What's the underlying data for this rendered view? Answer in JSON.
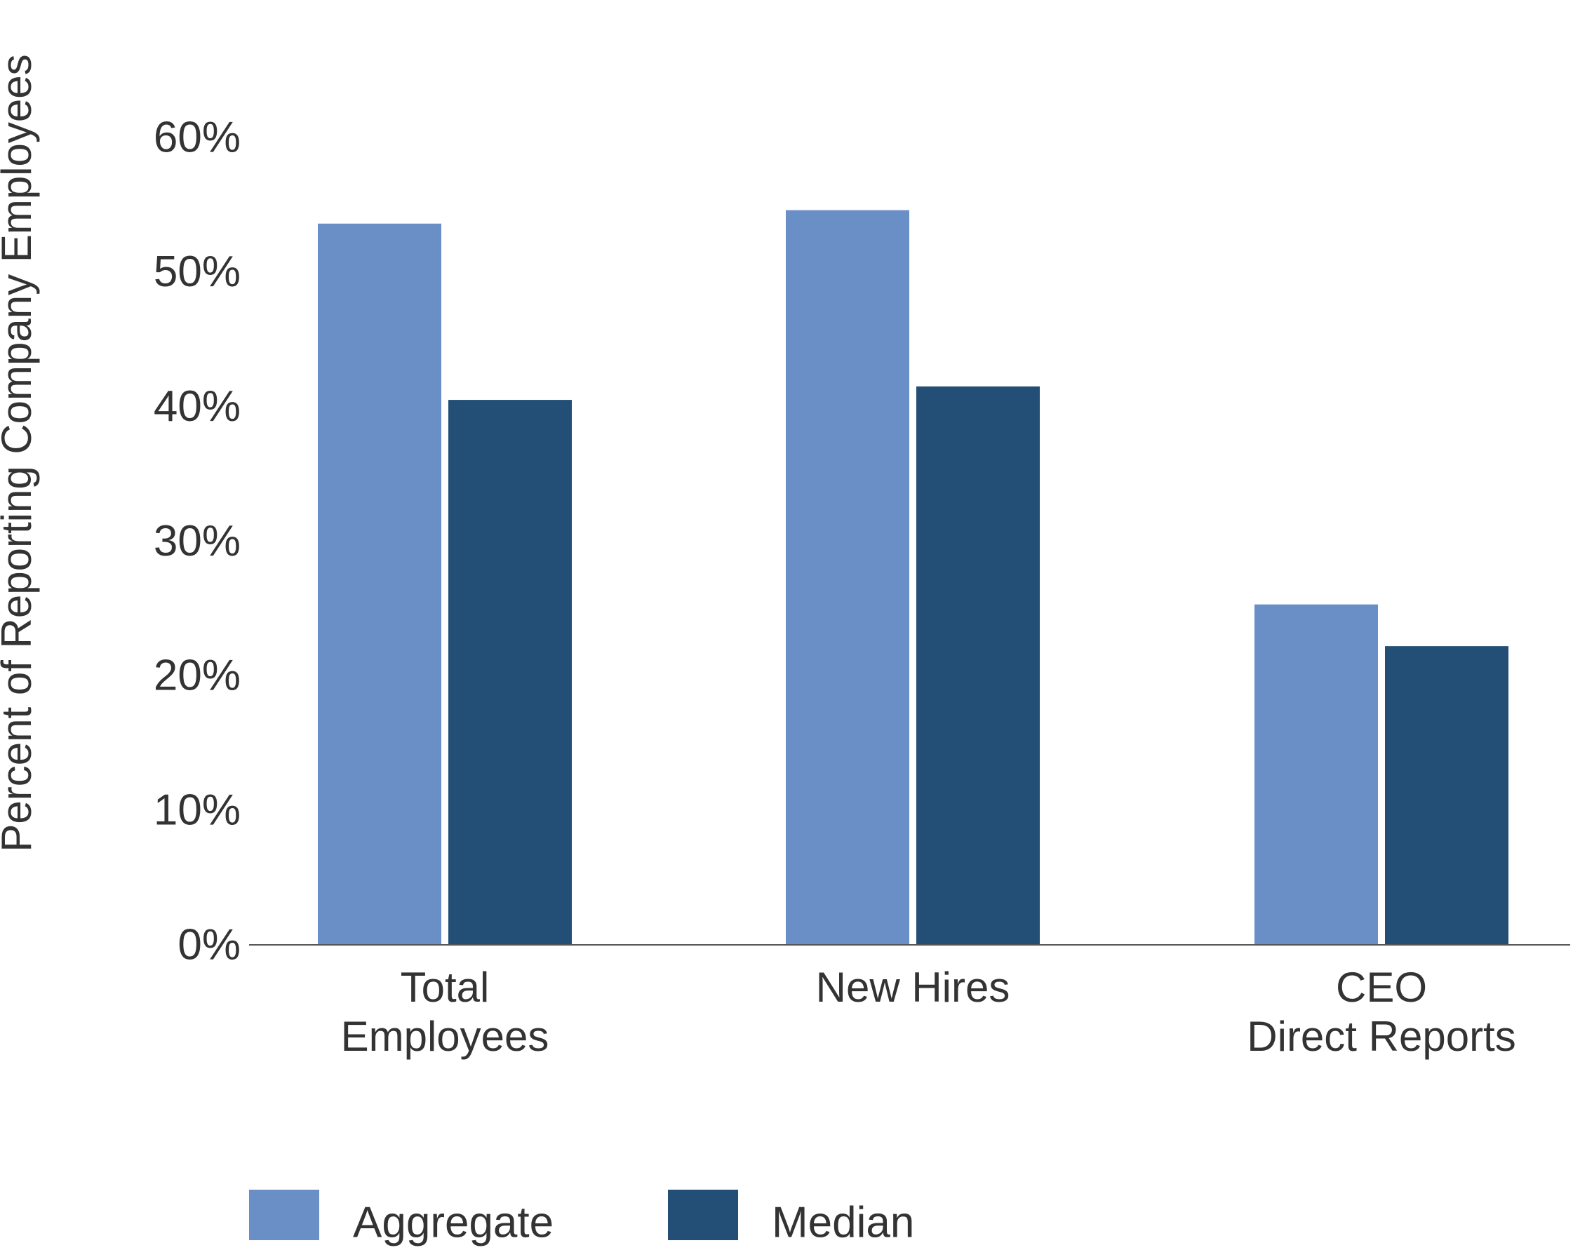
{
  "chart_data": {
    "type": "bar",
    "y_label": "Percent of Reporting Company Employees",
    "categories": [
      "Total\nEmployees",
      "New Hires",
      "CEO\nDirect Reports"
    ],
    "series": [
      {
        "name": "Aggregate",
        "color": "#6a8fc7",
        "values": [
          53.6,
          54.6,
          25.3
        ]
      },
      {
        "name": "Median",
        "color": "#234f76",
        "values": [
          40.5,
          41.5,
          22.2
        ]
      }
    ],
    "ylim": [
      0,
      60
    ],
    "yticks": [
      {
        "value": 0,
        "label": "0%"
      },
      {
        "value": 10,
        "label": "10%"
      },
      {
        "value": 20,
        "label": "20%"
      },
      {
        "value": 30,
        "label": "30%"
      },
      {
        "value": 40,
        "label": "40%"
      },
      {
        "value": 50,
        "label": "50%"
      },
      {
        "value": 60,
        "label": "60%"
      }
    ],
    "legend": "bottom-left"
  }
}
